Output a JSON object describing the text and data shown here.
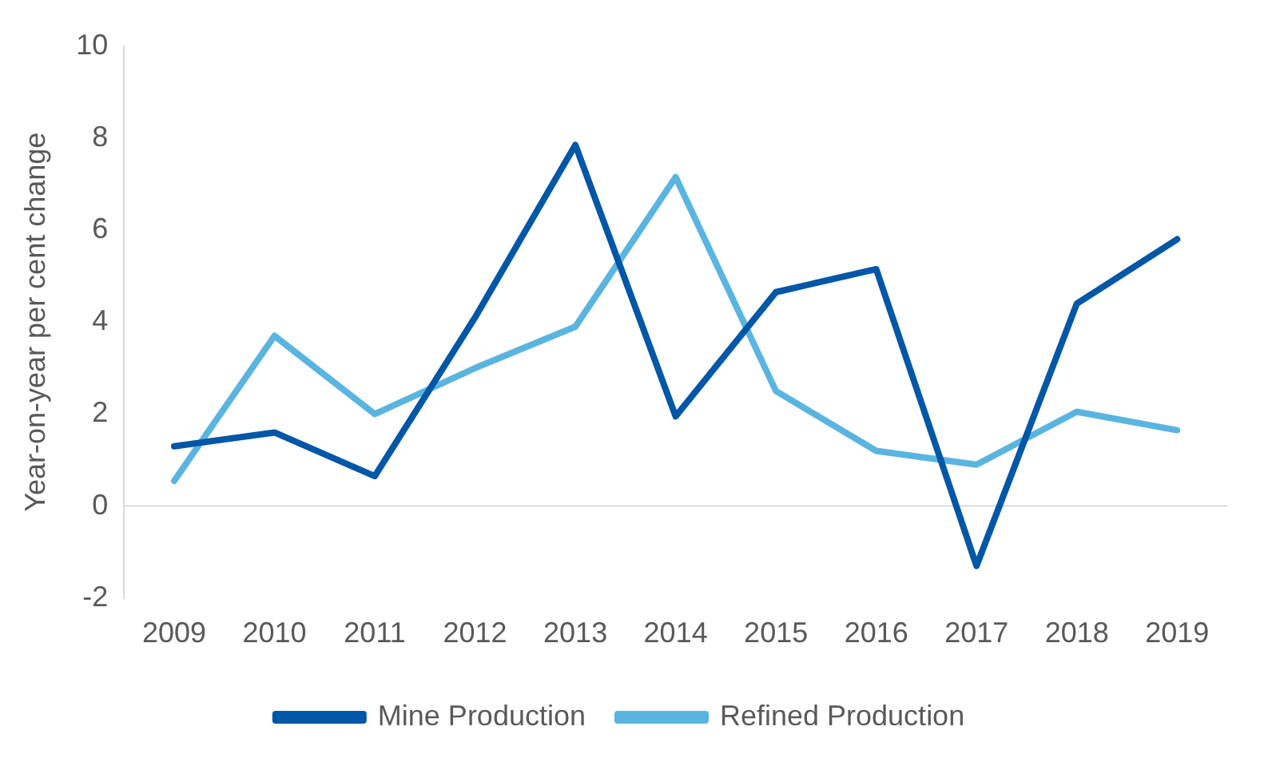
{
  "chart_data": {
    "type": "line",
    "ylabel": "Year-on-year per cent change",
    "categories": [
      "2009",
      "2010",
      "2011",
      "2012",
      "2013",
      "2014",
      "2015",
      "2016",
      "2017",
      "2018",
      "2019"
    ],
    "series": [
      {
        "name": "Mine Production",
        "color": "#0057a8",
        "values": [
          1.3,
          1.6,
          0.65,
          4.1,
          7.85,
          1.95,
          4.65,
          5.15,
          -1.3,
          4.4,
          5.8
        ]
      },
      {
        "name": "Refined Production",
        "color": "#5ab4e0",
        "values": [
          0.55,
          3.7,
          2.0,
          3.0,
          3.9,
          7.15,
          2.5,
          1.2,
          0.9,
          2.05,
          1.65
        ]
      }
    ],
    "ylim": [
      -2,
      10
    ],
    "yticks": [
      -2,
      0,
      2,
      4,
      6,
      8,
      10
    ],
    "grid": false,
    "legend": "bottom",
    "marker": "none",
    "line_style": "solid",
    "ref_lines": [
      {
        "axis": "y",
        "value": 0,
        "color": "#d9d9d9"
      }
    ]
  }
}
